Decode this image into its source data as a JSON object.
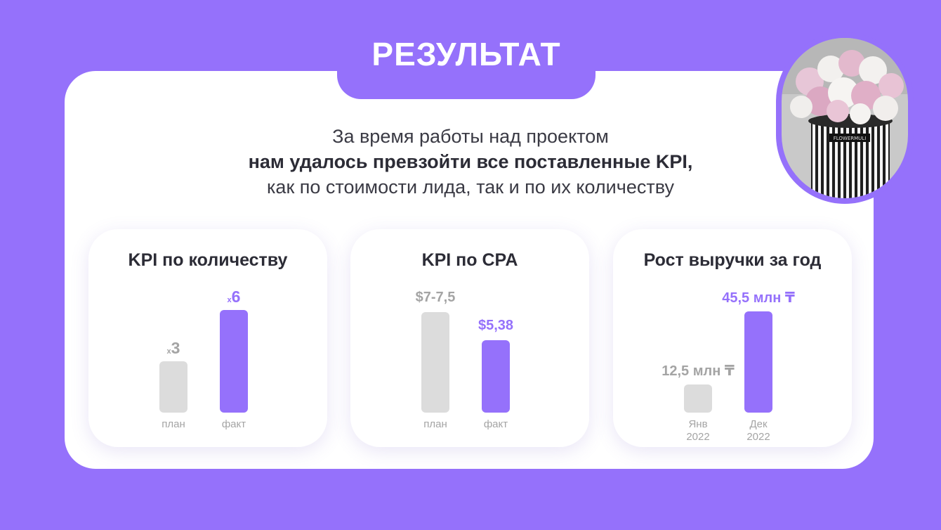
{
  "header": {
    "title": "РЕЗУЛЬТАТ"
  },
  "intro": {
    "line1": "За время работы над проектом",
    "line2": "нам удалось превзойти все поставленные KPI,",
    "line3": "как по стоимости лида, так и по их количеству"
  },
  "photo": {
    "box_text": "FLOWERMULI"
  },
  "colors": {
    "accent": "#9571fb",
    "plan_bar": "#dcdcdc",
    "background": "#ffffff"
  },
  "chart_data": [
    {
      "type": "bar",
      "title": "KPI по количеству",
      "categories": [
        "план",
        "факт"
      ],
      "values": [
        3,
        6
      ],
      "labels": [
        {
          "prefix": "x",
          "text": "3"
        },
        {
          "prefix": "x",
          "text": "6"
        }
      ],
      "ylim": [
        0,
        6
      ]
    },
    {
      "type": "bar",
      "title": "KPI по CPA",
      "categories": [
        "план",
        "факт"
      ],
      "values": [
        7.5,
        5.38
      ],
      "labels": [
        {
          "prefix": "",
          "text": "$7-7,5"
        },
        {
          "prefix": "",
          "text": "$5,38"
        }
      ],
      "ylim": [
        0,
        7.5
      ]
    },
    {
      "type": "bar",
      "title": "Рост выручки за год",
      "categories": [
        "Янв 2022",
        "Дек 2022"
      ],
      "category_lines": [
        [
          "Янв",
          "2022"
        ],
        [
          "Дек",
          "2022"
        ]
      ],
      "values": [
        12.5,
        45.5
      ],
      "labels": [
        {
          "prefix": "",
          "text": "12,5 млн ₸"
        },
        {
          "prefix": "",
          "text": "45,5 млн ₸"
        }
      ],
      "ylim": [
        0,
        45.5
      ]
    }
  ]
}
